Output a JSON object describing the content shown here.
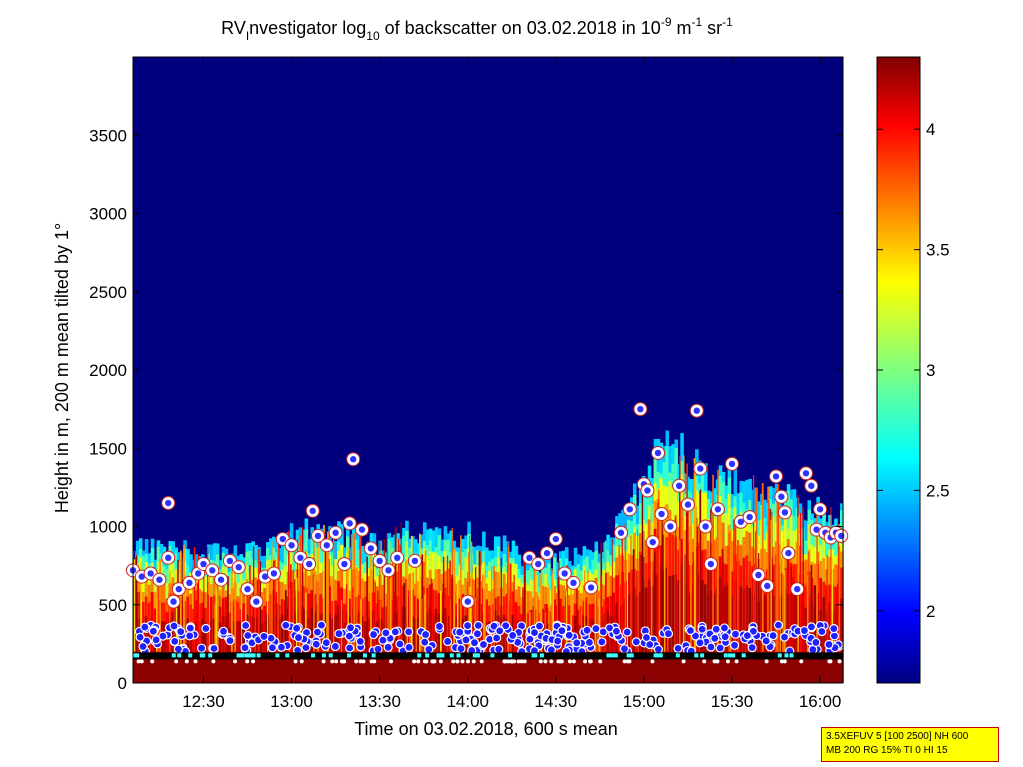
{
  "chart_data": {
    "type": "heatmap",
    "title_parts": {
      "instrument": "RV",
      "instrument_sub": "I",
      "name_rest": "nvestigator",
      "log_word": "log",
      "log_base": "10",
      "middle": "of backscatter on 03.02.2018 in 10",
      "exp1": "-9",
      "unit_m": "m",
      "exp2": "-1",
      "unit_sr": "sr",
      "exp3": "-1"
    },
    "xlabel": "Time on 03.02.2018, 600 s mean",
    "ylabel": "Height in m, 200 m mean tilted by 1°",
    "xlim_hours": [
      12.1,
      16.13
    ],
    "ylim": [
      0,
      4000
    ],
    "x_ticks": [
      {
        "value": 12.5,
        "label": "12:30"
      },
      {
        "value": 13.0,
        "label": "13:00"
      },
      {
        "value": 13.5,
        "label": "13:30"
      },
      {
        "value": 14.0,
        "label": "14:00"
      },
      {
        "value": 14.5,
        "label": "14:30"
      },
      {
        "value": 15.0,
        "label": "15:00"
      },
      {
        "value": 15.5,
        "label": "15:30"
      },
      {
        "value": 16.0,
        "label": "16:00"
      }
    ],
    "y_ticks": [
      {
        "value": 0,
        "label": "0"
      },
      {
        "value": 500,
        "label": "500"
      },
      {
        "value": 1000,
        "label": "1000"
      },
      {
        "value": 1500,
        "label": "1500"
      },
      {
        "value": 2000,
        "label": "2000"
      },
      {
        "value": 2500,
        "label": "2500"
      },
      {
        "value": 3000,
        "label": "3000"
      },
      {
        "value": 3500,
        "label": "3500"
      }
    ],
    "colorbar": {
      "range": [
        1.7,
        4.3
      ],
      "colormap": "jet",
      "ticks": [
        {
          "value": 2.0,
          "label": "2"
        },
        {
          "value": 2.5,
          "label": "2.5"
        },
        {
          "value": 3.0,
          "label": "3"
        },
        {
          "value": 3.5,
          "label": "3.5"
        },
        {
          "value": 4.0,
          "label": "4"
        }
      ]
    },
    "background_value": 1.7,
    "layer_top_profile": [
      {
        "t": 12.1,
        "h": 870
      },
      {
        "t": 12.25,
        "h": 860
      },
      {
        "t": 12.4,
        "h": 850
      },
      {
        "t": 12.6,
        "h": 830
      },
      {
        "t": 12.8,
        "h": 860
      },
      {
        "t": 12.95,
        "h": 930
      },
      {
        "t": 13.1,
        "h": 1000
      },
      {
        "t": 13.3,
        "h": 960
      },
      {
        "t": 13.5,
        "h": 880
      },
      {
        "t": 13.6,
        "h": 1000
      },
      {
        "t": 13.8,
        "h": 940
      },
      {
        "t": 14.0,
        "h": 960
      },
      {
        "t": 14.2,
        "h": 880
      },
      {
        "t": 14.4,
        "h": 760
      },
      {
        "t": 14.6,
        "h": 820
      },
      {
        "t": 14.8,
        "h": 920
      },
      {
        "t": 15.0,
        "h": 1300
      },
      {
        "t": 15.1,
        "h": 1540
      },
      {
        "t": 15.2,
        "h": 1500
      },
      {
        "t": 15.3,
        "h": 1400
      },
      {
        "t": 15.45,
        "h": 1300
      },
      {
        "t": 15.6,
        "h": 1300
      },
      {
        "t": 15.8,
        "h": 1200
      },
      {
        "t": 15.95,
        "h": 1110
      },
      {
        "t": 16.13,
        "h": 1100
      }
    ],
    "upper_markers": [
      {
        "t": 12.1,
        "h": 720
      },
      {
        "t": 12.15,
        "h": 680
      },
      {
        "t": 12.2,
        "h": 700
      },
      {
        "t": 12.25,
        "h": 660
      },
      {
        "t": 12.3,
        "h": 800
      },
      {
        "t": 12.3,
        "h": 1150
      },
      {
        "t": 12.33,
        "h": 520
      },
      {
        "t": 12.36,
        "h": 600
      },
      {
        "t": 12.42,
        "h": 640
      },
      {
        "t": 12.47,
        "h": 700
      },
      {
        "t": 12.5,
        "h": 760
      },
      {
        "t": 12.55,
        "h": 720
      },
      {
        "t": 12.6,
        "h": 660
      },
      {
        "t": 12.65,
        "h": 780
      },
      {
        "t": 12.7,
        "h": 740
      },
      {
        "t": 12.75,
        "h": 600
      },
      {
        "t": 12.8,
        "h": 520
      },
      {
        "t": 12.85,
        "h": 680
      },
      {
        "t": 12.9,
        "h": 700
      },
      {
        "t": 12.95,
        "h": 920
      },
      {
        "t": 13.0,
        "h": 880
      },
      {
        "t": 13.05,
        "h": 800
      },
      {
        "t": 13.1,
        "h": 760
      },
      {
        "t": 13.12,
        "h": 1100
      },
      {
        "t": 13.15,
        "h": 940
      },
      {
        "t": 13.2,
        "h": 880
      },
      {
        "t": 13.25,
        "h": 960
      },
      {
        "t": 13.3,
        "h": 760
      },
      {
        "t": 13.33,
        "h": 1020
      },
      {
        "t": 13.35,
        "h": 1430
      },
      {
        "t": 13.4,
        "h": 980
      },
      {
        "t": 13.45,
        "h": 860
      },
      {
        "t": 13.5,
        "h": 780
      },
      {
        "t": 13.55,
        "h": 720
      },
      {
        "t": 13.6,
        "h": 800
      },
      {
        "t": 13.7,
        "h": 780
      },
      {
        "t": 14.0,
        "h": 520
      },
      {
        "t": 14.35,
        "h": 800
      },
      {
        "t": 14.4,
        "h": 760
      },
      {
        "t": 14.45,
        "h": 830
      },
      {
        "t": 14.5,
        "h": 920
      },
      {
        "t": 14.55,
        "h": 700
      },
      {
        "t": 14.6,
        "h": 640
      },
      {
        "t": 14.7,
        "h": 610
      },
      {
        "t": 14.87,
        "h": 960
      },
      {
        "t": 14.92,
        "h": 1110
      },
      {
        "t": 14.98,
        "h": 1750
      },
      {
        "t": 15.0,
        "h": 1270
      },
      {
        "t": 15.02,
        "h": 1230
      },
      {
        "t": 15.05,
        "h": 900
      },
      {
        "t": 15.08,
        "h": 1470
      },
      {
        "t": 15.1,
        "h": 1080
      },
      {
        "t": 15.15,
        "h": 1000
      },
      {
        "t": 15.2,
        "h": 1260
      },
      {
        "t": 15.25,
        "h": 1140
      },
      {
        "t": 15.3,
        "h": 1740
      },
      {
        "t": 15.32,
        "h": 1370
      },
      {
        "t": 15.35,
        "h": 1000
      },
      {
        "t": 15.38,
        "h": 760
      },
      {
        "t": 15.42,
        "h": 1110
      },
      {
        "t": 15.5,
        "h": 1400
      },
      {
        "t": 15.55,
        "h": 1030
      },
      {
        "t": 15.6,
        "h": 1060
      },
      {
        "t": 15.65,
        "h": 690
      },
      {
        "t": 15.7,
        "h": 620
      },
      {
        "t": 15.75,
        "h": 1320
      },
      {
        "t": 15.78,
        "h": 1190
      },
      {
        "t": 15.8,
        "h": 1090
      },
      {
        "t": 15.82,
        "h": 830
      },
      {
        "t": 15.87,
        "h": 600
      },
      {
        "t": 15.92,
        "h": 1340
      },
      {
        "t": 15.95,
        "h": 1260
      },
      {
        "t": 15.98,
        "h": 980
      },
      {
        "t": 16.0,
        "h": 1110
      },
      {
        "t": 16.03,
        "h": 960
      },
      {
        "t": 16.06,
        "h": 930
      },
      {
        "t": 16.09,
        "h": 960
      },
      {
        "t": 16.12,
        "h": 940
      }
    ],
    "lower_marker_band": {
      "from_h": 200,
      "to_h": 370
    },
    "surface_line_height_m": 170
  },
  "param_box": {
    "line1": "3.5XEFUV 5 [100 2500] NH 600",
    "line2": "MB 200 RG 15% TI 0 HI 15"
  }
}
